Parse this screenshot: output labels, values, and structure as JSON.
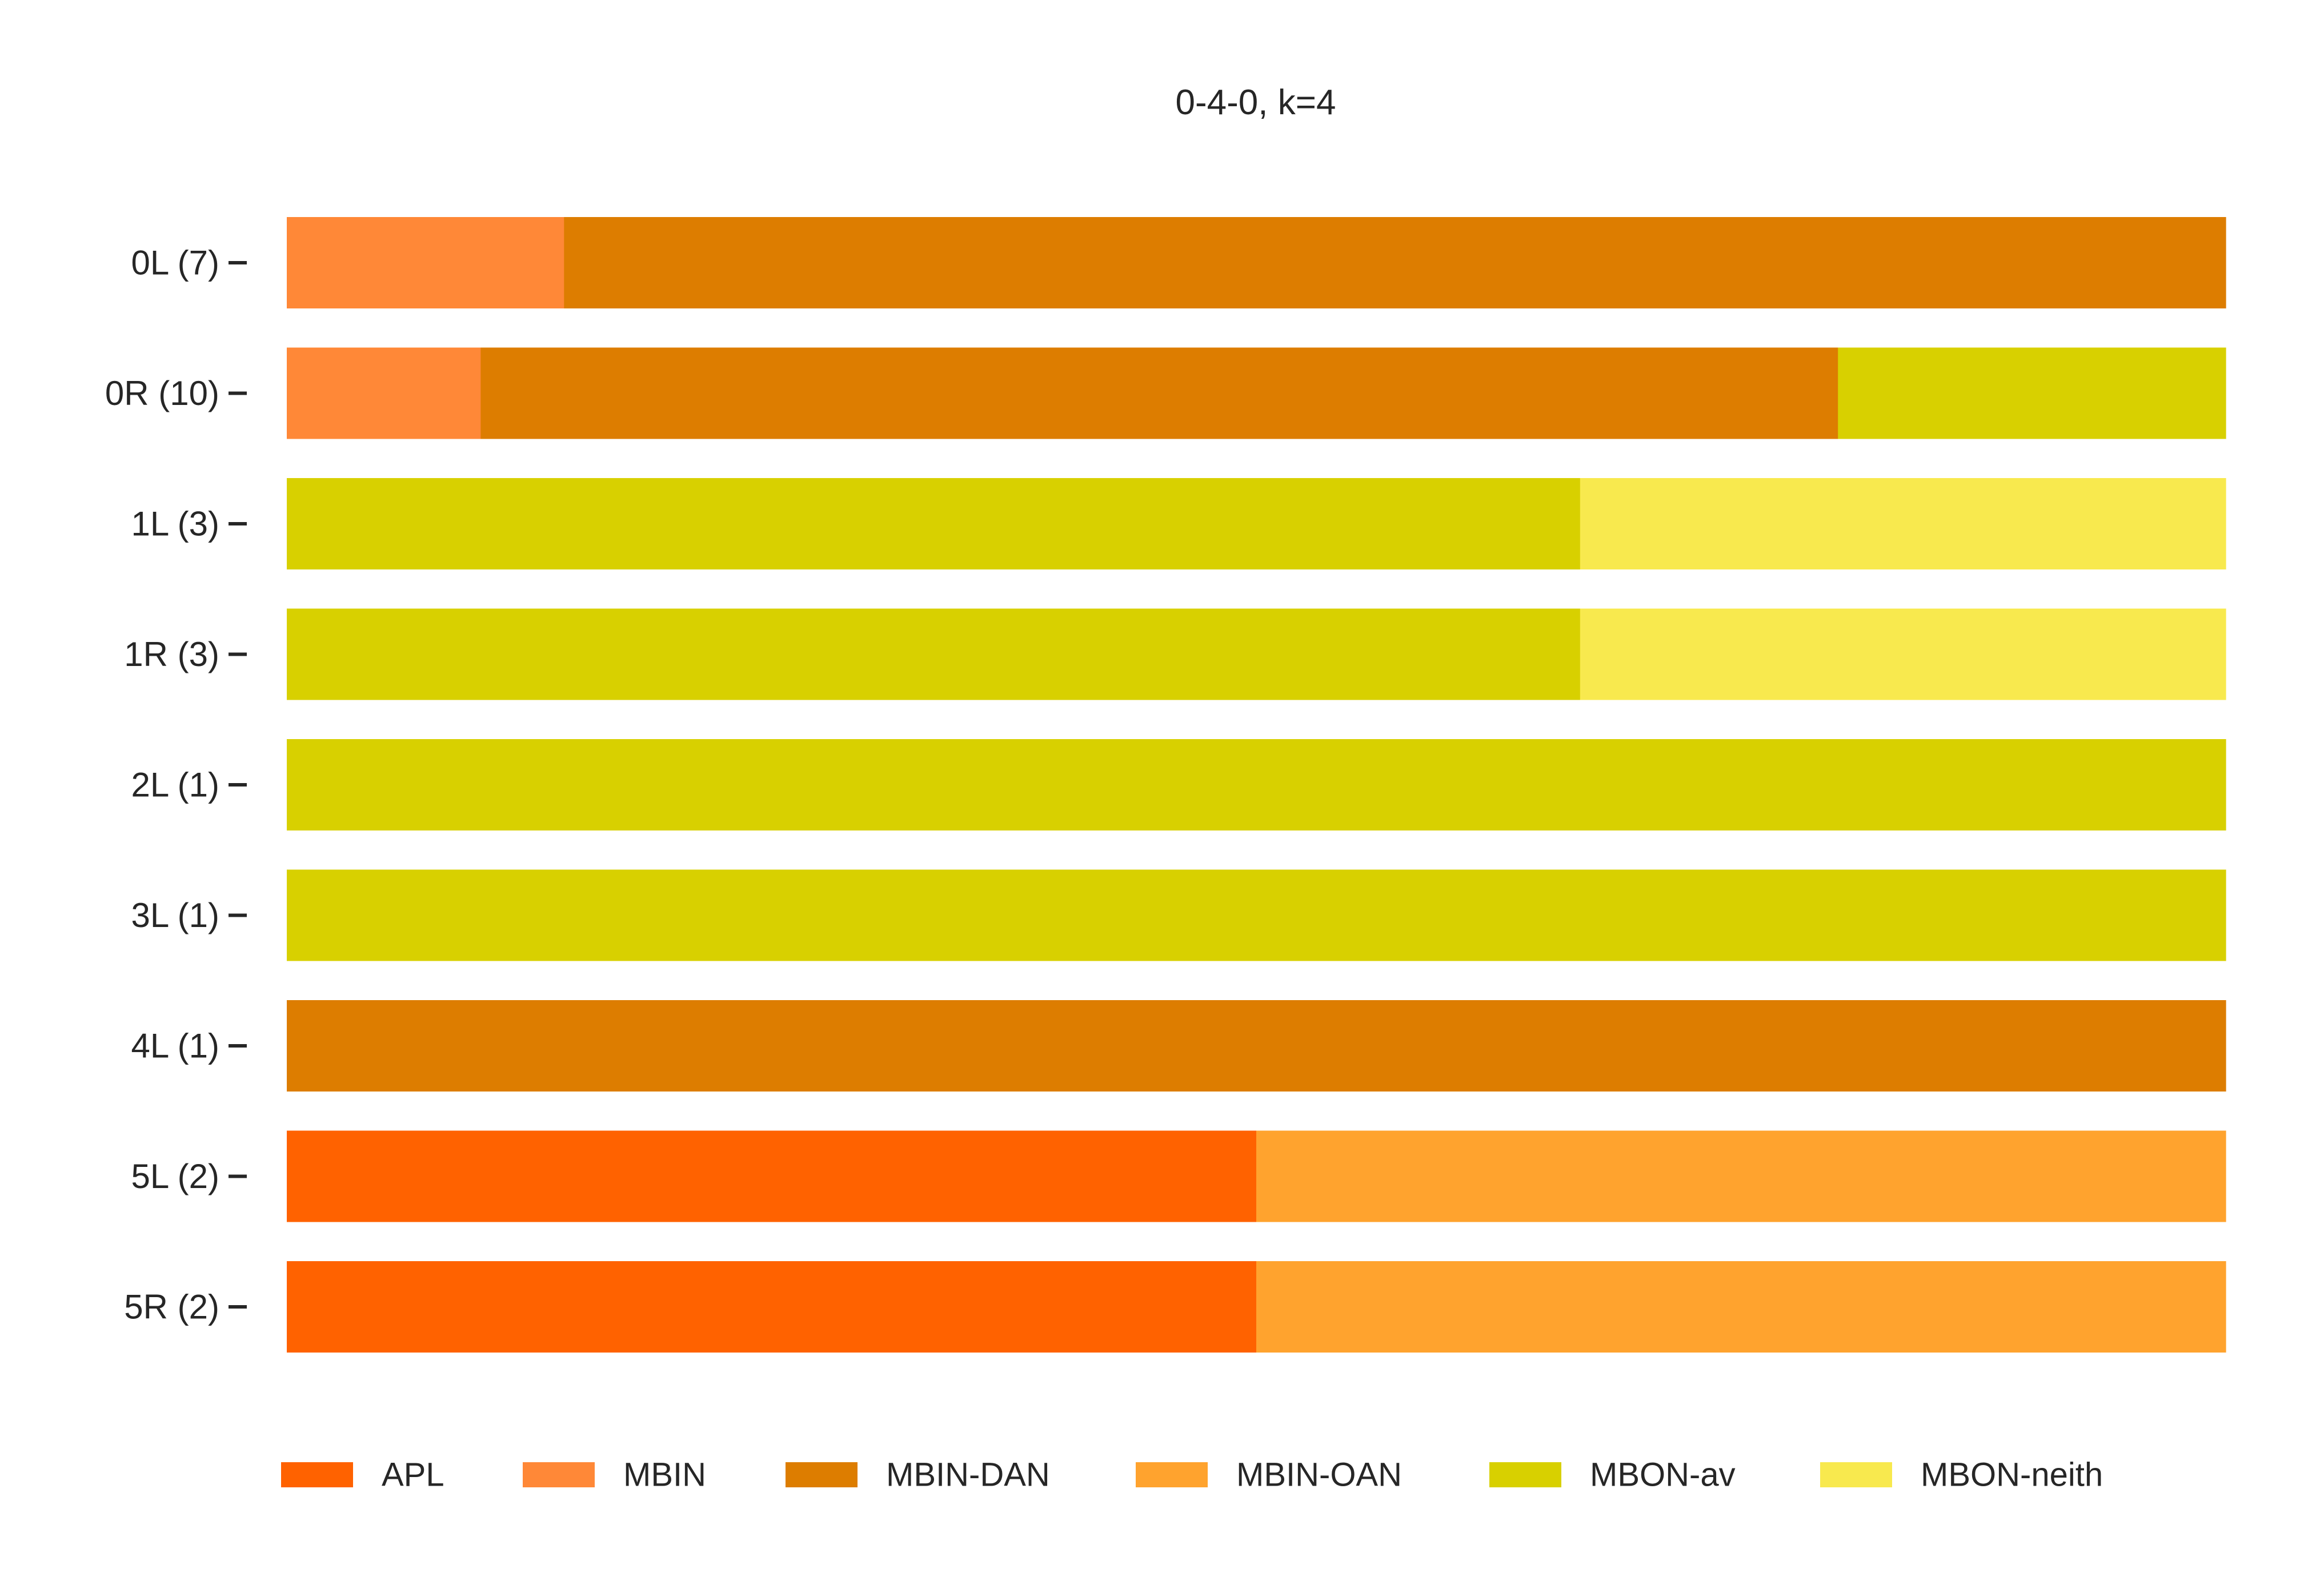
{
  "chart_data": {
    "type": "bar",
    "orientation": "horizontal",
    "stacked": true,
    "normalized": true,
    "title": "0-4-0, k=4",
    "xlabel": "",
    "ylabel": "",
    "xlim": [
      0,
      1
    ],
    "grid": false,
    "legend_position": "bottom",
    "categories": [
      "0L (7)",
      "0R (10)",
      "1L (3)",
      "1R (3)",
      "2L (1)",
      "3L (1)",
      "4L (1)",
      "5L (2)",
      "5R (2)"
    ],
    "series": [
      {
        "name": "APL",
        "color": "#ff6200",
        "values": [
          0,
          0,
          0,
          0,
          0,
          0,
          0,
          0.5,
          0.5
        ]
      },
      {
        "name": "MBIN",
        "color": "#ff8837",
        "values": [
          0.143,
          0.1,
          0,
          0,
          0,
          0,
          0,
          0,
          0
        ]
      },
      {
        "name": "MBIN-DAN",
        "color": "#dd7d00",
        "values": [
          0.857,
          0.7,
          0,
          0,
          0,
          0,
          1,
          0,
          0
        ]
      },
      {
        "name": "MBIN-OAN",
        "color": "#ffa32e",
        "values": [
          0,
          0,
          0,
          0,
          0,
          0,
          0,
          0.5,
          0.5
        ]
      },
      {
        "name": "MBON-av",
        "color": "#d8d000",
        "values": [
          0,
          0.2,
          0.667,
          0.667,
          1,
          1,
          0,
          0,
          0
        ]
      },
      {
        "name": "MBON-neith",
        "color": "#f8e94e",
        "values": [
          0,
          0,
          0.333,
          0.333,
          0,
          0,
          0,
          0,
          0
        ]
      }
    ]
  }
}
